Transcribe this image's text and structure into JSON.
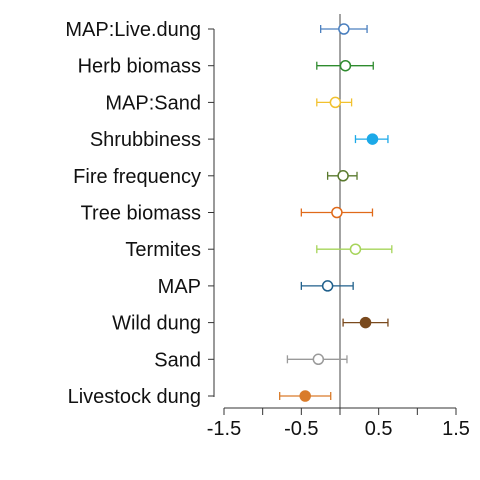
{
  "chart_data": {
    "type": "scatter",
    "subtype": "coefficient-plot",
    "title": "",
    "xlabel": "",
    "ylabel": "",
    "xlim": [
      -1.5,
      1.5
    ],
    "xticks": [
      -1.5,
      -1,
      -0.5,
      0,
      0.5,
      1,
      1.5
    ],
    "xtick_labels": [
      "-1.5",
      "",
      "-0.5",
      "",
      "0.5",
      "",
      "1.5"
    ],
    "reference_line_x": 0,
    "grid": false,
    "series": [
      {
        "label": "MAP:Live.dung",
        "estimate": 0.05,
        "lower": -0.25,
        "upper": 0.35,
        "color": "#4a7fbf",
        "filled": false
      },
      {
        "label": "Herb biomass",
        "estimate": 0.07,
        "lower": -0.3,
        "upper": 0.43,
        "color": "#2e8b2e",
        "filled": false
      },
      {
        "label": "MAP:Sand",
        "estimate": -0.06,
        "lower": -0.3,
        "upper": 0.15,
        "color": "#f2c12e",
        "filled": false
      },
      {
        "label": "Shrubbiness",
        "estimate": 0.42,
        "lower": 0.2,
        "upper": 0.62,
        "color": "#1ca9e8",
        "filled": true
      },
      {
        "label": "Fire frequency",
        "estimate": 0.04,
        "lower": -0.16,
        "upper": 0.22,
        "color": "#5a7a2e",
        "filled": false
      },
      {
        "label": "Tree biomass",
        "estimate": -0.04,
        "lower": -0.5,
        "upper": 0.42,
        "color": "#e06a1a",
        "filled": false
      },
      {
        "label": "Termites",
        "estimate": 0.2,
        "lower": -0.3,
        "upper": 0.67,
        "color": "#a6d45a",
        "filled": false
      },
      {
        "label": "MAP",
        "estimate": -0.16,
        "lower": -0.5,
        "upper": 0.17,
        "color": "#1f5f8b",
        "filled": false
      },
      {
        "label": "Wild dung",
        "estimate": 0.33,
        "lower": 0.04,
        "upper": 0.62,
        "color": "#7a4a1e",
        "filled": true
      },
      {
        "label": "Sand",
        "estimate": -0.28,
        "lower": -0.68,
        "upper": 0.09,
        "color": "#9a9a9a",
        "filled": false
      },
      {
        "label": "Livestock dung",
        "estimate": -0.45,
        "lower": -0.78,
        "upper": -0.12,
        "color": "#d97b2a",
        "filled": true
      }
    ]
  }
}
